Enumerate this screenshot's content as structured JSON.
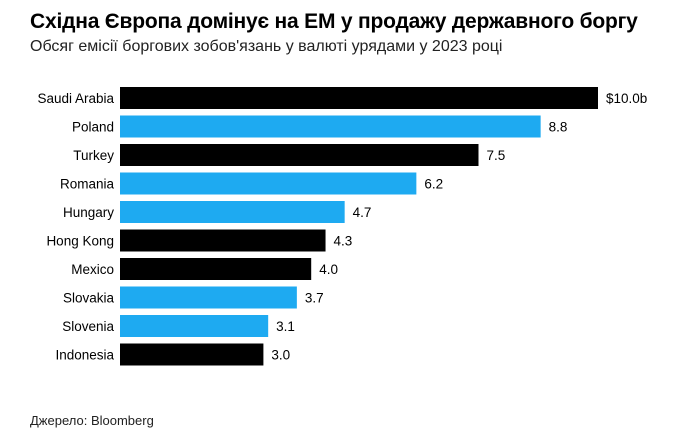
{
  "chart_data": {
    "type": "bar",
    "orientation": "horizontal",
    "title": "Східна Європа домінує на ЕМ у продажу державного боргу",
    "subtitle": "Обсяг емісії боргових зобов'язань у валюті урядами у 2023 році",
    "categories": [
      "Saudi Arabia",
      "Poland",
      "Turkey",
      "Romania",
      "Hungary",
      "Hong Kong",
      "Mexico",
      "Slovakia",
      "Slovenia",
      "Indonesia"
    ],
    "values": [
      10.0,
      8.8,
      7.5,
      6.2,
      4.7,
      4.3,
      4.0,
      3.7,
      3.1,
      3.0
    ],
    "value_labels": [
      "$10.0b",
      "8.8",
      "7.5",
      "6.2",
      "4.7",
      "4.3",
      "4.0",
      "3.7",
      "3.1",
      "3.0"
    ],
    "bar_colors": [
      "#000000",
      "#1eaaf1",
      "#000000",
      "#1eaaf1",
      "#1eaaf1",
      "#000000",
      "#000000",
      "#1eaaf1",
      "#1eaaf1",
      "#000000"
    ],
    "xlim": [
      0,
      10.0
    ],
    "grid": false,
    "source": "Джерело: Bloomberg"
  }
}
